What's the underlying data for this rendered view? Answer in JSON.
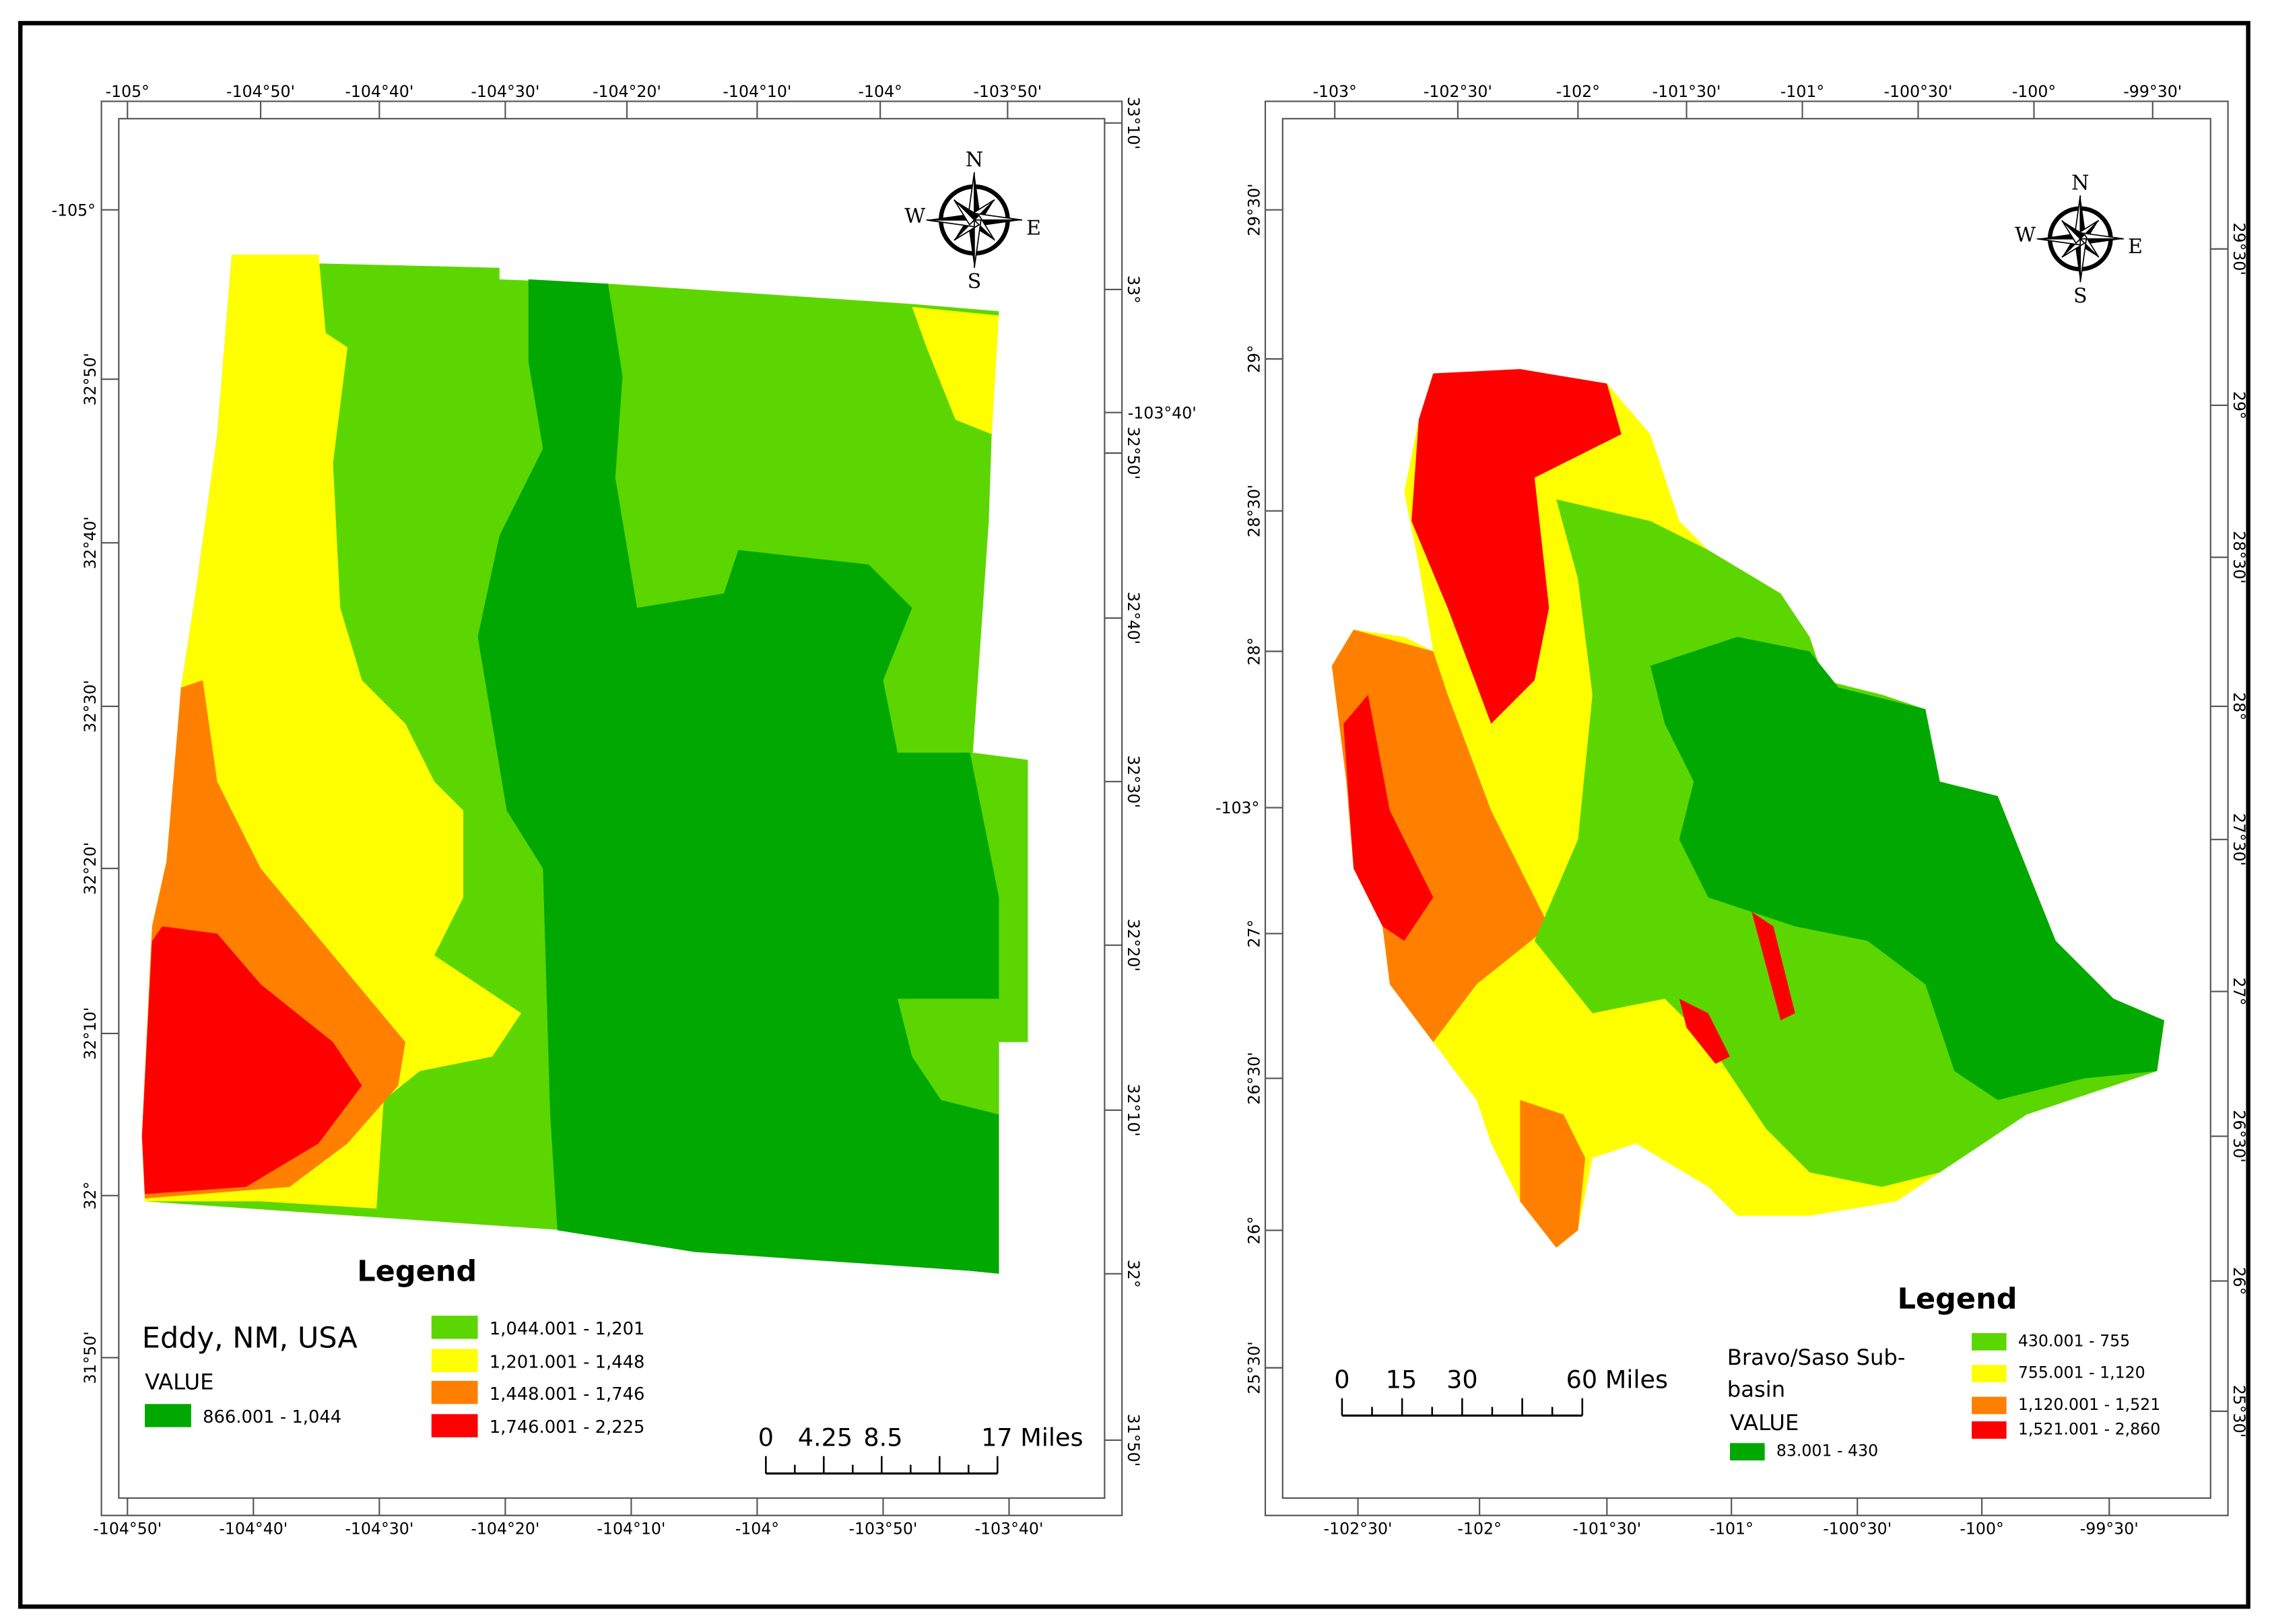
{
  "maps": [
    {
      "top_labels": [
        "-105°",
        "-104°50'",
        "-104°40'",
        "-104°30'",
        "-104°20'",
        "-104°10'",
        "-104°",
        "-103°50'"
      ],
      "bottom_labels": [
        "-104°50'",
        "-104°40'",
        "-104°30'",
        "-104°20'",
        "-104°10'",
        "-104°",
        "-103°50'",
        "-103°40'"
      ],
      "left_labels": [
        "-105°",
        "32°50'",
        "32°40'",
        "32°30'",
        "32°20'",
        "32°10'",
        "32°",
        "31°50'"
      ],
      "right_labels": [
        "33°10'",
        "33°",
        "-103°40'",
        "32°50'",
        "32°40'",
        "32°30'",
        "32°20'",
        "32°10'",
        "32°",
        "31°50'"
      ],
      "compass": {
        "n": "N",
        "e": "E",
        "s": "S",
        "w": "W"
      },
      "legend": {
        "title": "Legend",
        "name_lines": [
          "Eddy, NM, USA"
        ],
        "field": "VALUE",
        "classes": [
          {
            "label": "866.001 - 1,044",
            "color": "#00a800"
          },
          {
            "label": "1,044.001 - 1,201",
            "color": "#5cd600"
          },
          {
            "label": "1,201.001 - 1,448",
            "color": "#ffff00"
          },
          {
            "label": "1,448.001 - 1,746",
            "color": "#ff8000"
          },
          {
            "label": "1,746.001 - 2,225",
            "color": "#ff0000"
          }
        ]
      },
      "scale_bar": [
        "0",
        "4.25",
        "8.5",
        "17 Miles"
      ]
    },
    {
      "top_labels": [
        "-103°",
        "-102°30'",
        "-102°",
        "-101°30'",
        "-101°",
        "-100°30'",
        "-100°",
        "-99°30'"
      ],
      "bottom_labels": [
        "-102°30'",
        "-102°",
        "-101°30'",
        "-101°",
        "-100°30'",
        "-100°",
        "-99°30'"
      ],
      "left_labels": [
        "29°30'",
        "29°",
        "28°30'",
        "28°",
        "-103°",
        "27°",
        "26°30'",
        "26°",
        "25°30'"
      ],
      "right_labels": [
        "29°30'",
        "29°",
        "28°30'",
        "28°",
        "27°30'",
        "27°",
        "26°30'",
        "26°",
        "25°30'"
      ],
      "compass": {
        "n": "N",
        "e": "E",
        "s": "S",
        "w": "W"
      },
      "legend": {
        "title": "Legend",
        "name_lines": [
          "Bravo/Saso Sub-",
          "basin"
        ],
        "field": "VALUE",
        "classes": [
          {
            "label": "83.001 - 430",
            "color": "#00a800"
          },
          {
            "label": "430.001 - 755",
            "color": "#5cd600"
          },
          {
            "label": "755.001 - 1,120",
            "color": "#ffff00"
          },
          {
            "label": "1,120.001 - 1,521",
            "color": "#ff8000"
          },
          {
            "label": "1,521.001 - 2,860",
            "color": "#ff0000"
          }
        ]
      },
      "scale_bar": [
        "0",
        "15",
        "30",
        "60 Miles"
      ]
    }
  ]
}
